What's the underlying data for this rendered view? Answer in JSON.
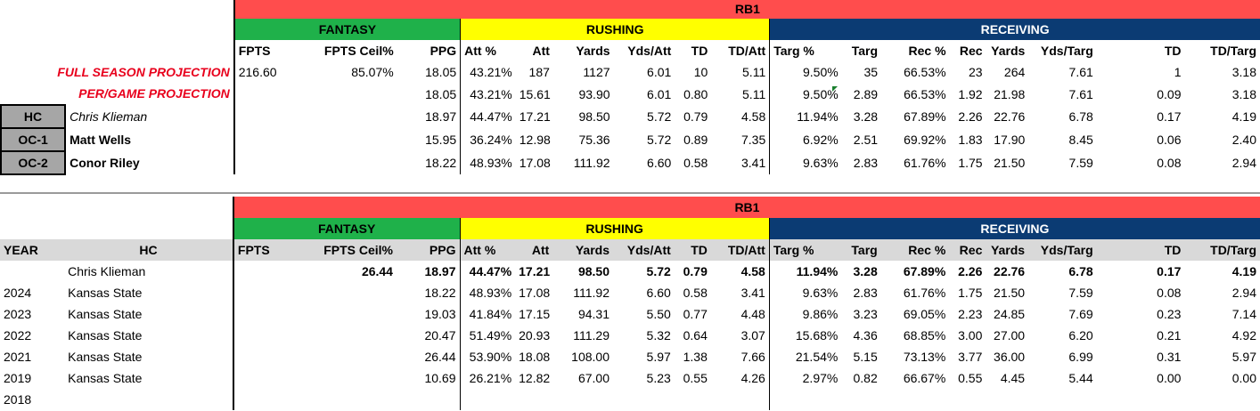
{
  "top": {
    "position_label": "RB1",
    "groups": {
      "fantasy": "FANTASY",
      "rushing": "RUSHING",
      "receiving": "RECEIVING"
    },
    "headers": [
      "FPTS",
      "FPTS Ceil%",
      "PPG",
      "Att %",
      "Att",
      "Yards",
      "Yds/Att",
      "TD",
      "TD/Att",
      "Targ %",
      "Targ",
      "Rec %",
      "Rec",
      "Yards",
      "Yds/Targ",
      "TD",
      "TD/Targ"
    ],
    "projections": [
      {
        "label": "FULL SEASON PROJECTION",
        "values": [
          "216.60",
          "85.07%",
          "18.05",
          "43.21%",
          "187",
          "1127",
          "6.01",
          "10",
          "5.11",
          "9.50%",
          "35",
          "66.53%",
          "23",
          "264",
          "7.61",
          "1",
          "3.18"
        ]
      },
      {
        "label": "PER/GAME PROJECTION",
        "values": [
          "",
          "",
          "18.05",
          "43.21%",
          "15.61",
          "93.90",
          "6.01",
          "0.80",
          "5.11",
          "9.50%",
          "2.89",
          "66.53%",
          "1.92",
          "21.98",
          "7.61",
          "0.09",
          "3.18"
        ]
      }
    ],
    "coaches": [
      {
        "role": "HC",
        "name": "Chris Klieman",
        "values": [
          "",
          "",
          "18.97",
          "44.47%",
          "17.21",
          "98.50",
          "5.72",
          "0.79",
          "4.58",
          "11.94%",
          "3.28",
          "67.89%",
          "2.26",
          "22.76",
          "6.78",
          "0.17",
          "4.19"
        ]
      },
      {
        "role": "OC-1",
        "name": "Matt Wells",
        "values": [
          "",
          "",
          "15.95",
          "36.24%",
          "12.98",
          "75.36",
          "5.72",
          "0.89",
          "7.35",
          "6.92%",
          "2.51",
          "69.92%",
          "1.83",
          "17.90",
          "8.45",
          "0.06",
          "2.40"
        ]
      },
      {
        "role": "OC-2",
        "name": "Conor Riley",
        "values": [
          "",
          "",
          "18.22",
          "48.93%",
          "17.08",
          "111.92",
          "6.60",
          "0.58",
          "3.41",
          "9.63%",
          "2.83",
          "61.76%",
          "1.75",
          "21.50",
          "7.59",
          "0.08",
          "2.94"
        ]
      }
    ]
  },
  "bottom": {
    "position_label": "RB1",
    "groups": {
      "fantasy": "FANTASY",
      "rushing": "RUSHING",
      "receiving": "RECEIVING"
    },
    "year_header": "YEAR",
    "hc_header": "HC",
    "headers": [
      "FPTS",
      "FPTS Ceil%",
      "PPG",
      "Att %",
      "Att",
      "Yards",
      "Yds/Att",
      "TD",
      "TD/Att",
      "Targ %",
      "Targ",
      "Rec %",
      "Rec",
      "Yards",
      "Yds/Targ",
      "TD",
      "TD/Targ"
    ],
    "rows": [
      {
        "year": "",
        "team": "Chris Klieman",
        "bold": true,
        "values": [
          "",
          "26.44",
          "18.97",
          "44.47%",
          "17.21",
          "98.50",
          "5.72",
          "0.79",
          "4.58",
          "11.94%",
          "3.28",
          "67.89%",
          "2.26",
          "22.76",
          "6.78",
          "0.17",
          "4.19"
        ]
      },
      {
        "year": "2024",
        "team": "Kansas State",
        "values": [
          "",
          "",
          "18.22",
          "48.93%",
          "17.08",
          "111.92",
          "6.60",
          "0.58",
          "3.41",
          "9.63%",
          "2.83",
          "61.76%",
          "1.75",
          "21.50",
          "7.59",
          "0.08",
          "2.94"
        ]
      },
      {
        "year": "2023",
        "team": "Kansas State",
        "values": [
          "",
          "",
          "19.03",
          "41.84%",
          "17.15",
          "94.31",
          "5.50",
          "0.77",
          "4.48",
          "9.86%",
          "3.23",
          "69.05%",
          "2.23",
          "24.85",
          "7.69",
          "0.23",
          "7.14"
        ]
      },
      {
        "year": "2022",
        "team": "Kansas State",
        "values": [
          "",
          "",
          "20.47",
          "51.49%",
          "20.93",
          "111.29",
          "5.32",
          "0.64",
          "3.07",
          "15.68%",
          "4.36",
          "68.85%",
          "3.00",
          "27.00",
          "6.20",
          "0.21",
          "4.92"
        ]
      },
      {
        "year": "2021",
        "team": "Kansas State",
        "values": [
          "",
          "",
          "26.44",
          "53.90%",
          "18.08",
          "108.00",
          "5.97",
          "1.38",
          "7.66",
          "21.54%",
          "5.15",
          "73.13%",
          "3.77",
          "36.00",
          "6.99",
          "0.31",
          "5.97"
        ]
      },
      {
        "year": "2019",
        "team": "Kansas State",
        "values": [
          "",
          "",
          "10.69",
          "26.21%",
          "12.82",
          "67.00",
          "5.23",
          "0.55",
          "4.26",
          "2.97%",
          "0.82",
          "66.67%",
          "0.55",
          "4.45",
          "5.44",
          "0.00",
          "0.00"
        ]
      },
      {
        "year": "2018",
        "team": "",
        "values": [
          "",
          "",
          "",
          "",
          "",
          "",
          "",
          "",
          "",
          "",
          "",
          "",
          "",
          "",
          "",
          "",
          ""
        ]
      }
    ]
  },
  "colors": {
    "band": "#ff4d4d",
    "fantasy": "#1fb14a",
    "rushing": "#ffff00",
    "receiving": "#0b3b73",
    "projection_text": "#e8001c",
    "badge": "#a6a6a6"
  }
}
